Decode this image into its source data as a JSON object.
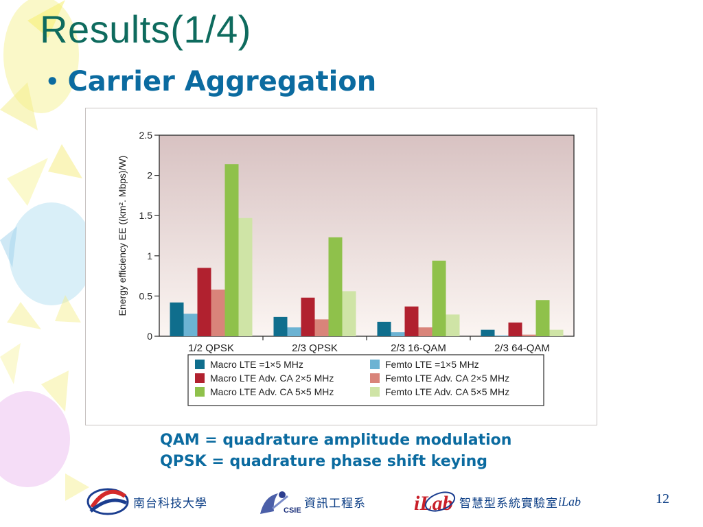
{
  "slide": {
    "title": "Results(1/4)",
    "bullet": "Carrier Aggregation",
    "notes": [
      "QAM = quadrature amplitude modulation",
      "QPSK = quadrature phase shift keying"
    ],
    "page_number": "12"
  },
  "footer": {
    "school": "南台科技大學",
    "department": "資訊工程系",
    "lab": "智慧型系統實驗室",
    "lab_suffix": "iLab",
    "csie_text": "CSIE",
    "ilab_logo_text": "iLab"
  },
  "colors": {
    "title": "#0e6b5e",
    "bullet": "#0b6ba0",
    "plot_bg_top": "#d8c2c2",
    "plot_bg_bottom": "#fbf5f2",
    "series": [
      "#0f6e8d",
      "#6cb3d3",
      "#b1212f",
      "#d9847a",
      "#8fc14b",
      "#cfe4a6"
    ]
  },
  "chart_data": {
    "type": "bar",
    "ylabel": "Energy efficiency EE ((km². Mbps)/W)",
    "ylim": [
      0,
      2.5
    ],
    "yticks": [
      "0",
      "0.5",
      "1",
      "1.5",
      "2",
      "2.5"
    ],
    "grid": false,
    "legend_position": "bottom",
    "categories": [
      "1/2 QPSK",
      "2/3 QPSK",
      "2/3 16-QAM",
      "2/3 64-QAM"
    ],
    "series": [
      {
        "name": "Macro LTE =1×5 MHz",
        "values": [
          0.42,
          0.24,
          0.18,
          0.08
        ]
      },
      {
        "name": "Femto LTE =1×5 MHz",
        "values": [
          0.28,
          0.11,
          0.05,
          0.01
        ]
      },
      {
        "name": "Macro LTE Adv. CA 2×5 MHz",
        "values": [
          0.85,
          0.48,
          0.37,
          0.17
        ]
      },
      {
        "name": "Femto LTE Adv. CA 2×5 MHz",
        "values": [
          0.58,
          0.21,
          0.11,
          0.02
        ]
      },
      {
        "name": "Macro LTE Adv. CA 5×5 MHz",
        "values": [
          2.14,
          1.23,
          0.94,
          0.45
        ]
      },
      {
        "name": "Femto LTE Adv. CA 5×5 MHz",
        "values": [
          1.47,
          0.56,
          0.27,
          0.08
        ]
      }
    ]
  }
}
